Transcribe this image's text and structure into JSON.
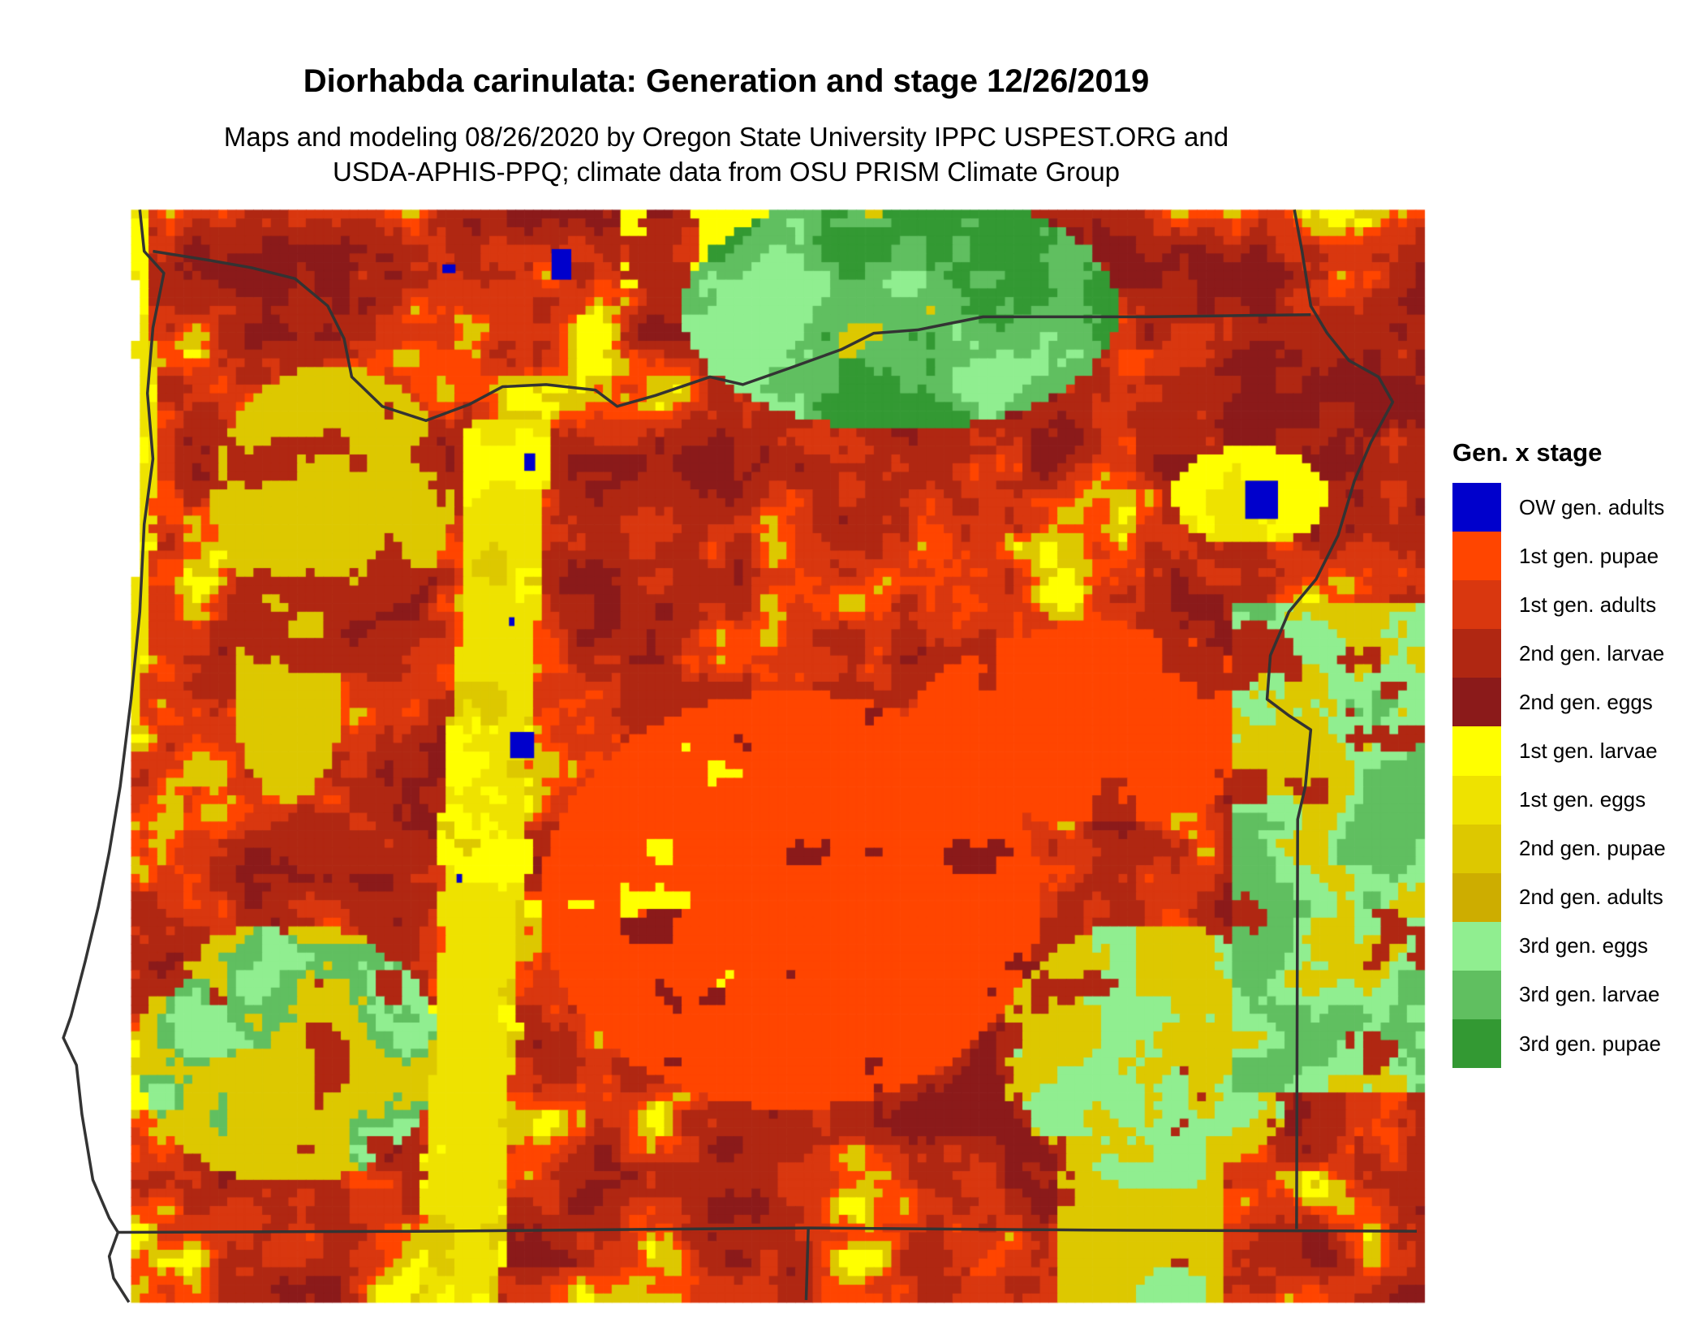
{
  "title": "Diorhabda carinulata: Generation and stage 12/26/2019",
  "subtitle_line1": "Maps and modeling 08/26/2020 by Oregon State University IPPC USPEST.ORG and",
  "subtitle_line2": "USDA-APHIS-PPQ; climate data from OSU PRISM Climate Group",
  "legend": {
    "title": "Gen. x stage",
    "items": [
      {
        "label": "OW gen. adults",
        "color": "#0000CC"
      },
      {
        "label": "1st gen. pupae",
        "color": "#FF4500"
      },
      {
        "label": "1st gen. adults",
        "color": "#D9370F"
      },
      {
        "label": "2nd gen. larvae",
        "color": "#B02712"
      },
      {
        "label": "2nd gen. eggs",
        "color": "#8B1A1A"
      },
      {
        "label": "1st gen. larvae",
        "color": "#FFFF00"
      },
      {
        "label": "1st gen. eggs",
        "color": "#EEE200"
      },
      {
        "label": "2nd gen. pupae",
        "color": "#DDC800"
      },
      {
        "label": "2nd gen. adults",
        "color": "#CDAD00"
      },
      {
        "label": "3rd gen. eggs",
        "color": "#90EE90"
      },
      {
        "label": "3rd gen. larvae",
        "color": "#60BF60"
      },
      {
        "label": "3rd gen. pupae",
        "color": "#339933"
      }
    ]
  },
  "border_color": "#333333"
}
